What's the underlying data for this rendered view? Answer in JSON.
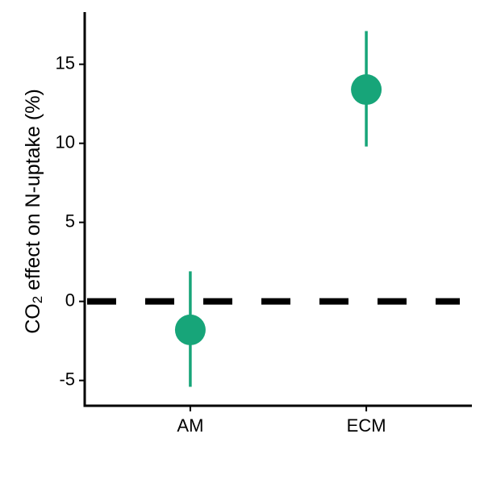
{
  "chart_data": {
    "type": "pointrange",
    "categories": [
      "AM",
      "ECM"
    ],
    "series": [
      {
        "color": "#17a579",
        "values": [
          -1.8,
          13.4
        ],
        "lower": [
          -5.4,
          9.8
        ],
        "upper": [
          1.9,
          17.1
        ]
      }
    ],
    "ylabel_parts": [
      "CO",
      "2",
      " effect on N-uptake (%)"
    ],
    "ylim": [
      -6.6,
      18.3
    ],
    "yticks": [
      -5,
      0,
      5,
      10,
      15
    ],
    "hline": 0
  }
}
